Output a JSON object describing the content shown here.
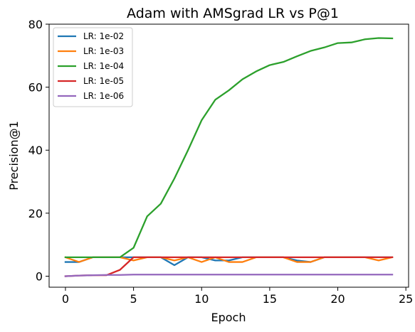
{
  "chart_data": {
    "type": "line",
    "title": "Adam with AMSgrad LR vs P@1",
    "xlabel": "Epoch",
    "ylabel": "Precision@1",
    "xlim": [
      -1.2,
      25.2
    ],
    "ylim": [
      -3.5,
      80
    ],
    "xticks": [
      0,
      5,
      10,
      15,
      20,
      25
    ],
    "yticks": [
      0,
      20,
      40,
      60,
      80
    ],
    "grid": false,
    "legend_position": "top-left",
    "x": [
      0,
      1,
      2,
      3,
      4,
      5,
      6,
      7,
      8,
      9,
      10,
      11,
      12,
      13,
      14,
      15,
      16,
      17,
      18,
      19,
      20,
      21,
      22,
      23,
      24
    ],
    "series": [
      {
        "name": "LR: 1e-02",
        "color": "#1f77b4",
        "values": [
          4.5,
          4.5,
          6,
          6,
          6,
          6,
          6,
          6,
          3.5,
          6,
          6,
          5,
          5,
          6,
          6,
          6,
          6,
          5,
          4.5,
          6,
          6,
          6,
          6,
          6,
          6
        ]
      },
      {
        "name": "LR: 1e-03",
        "color": "#ff7f0e",
        "values": [
          6,
          4.5,
          6,
          6,
          6,
          5,
          6,
          6,
          5,
          6,
          4.5,
          6,
          4.5,
          4.5,
          6,
          6,
          6,
          4.5,
          4.5,
          6,
          6,
          6,
          6,
          5,
          6
        ]
      },
      {
        "name": "LR: 1e-04",
        "color": "#2ca02c",
        "values": [
          6,
          6,
          6,
          6,
          6,
          9,
          19,
          23,
          31,
          40,
          49.5,
          56,
          59,
          62.5,
          65,
          67,
          68,
          69.8,
          71.5,
          72.6,
          74,
          74.2,
          75.2,
          75.6,
          75.5
        ]
      },
      {
        "name": "LR: 1e-05",
        "color": "#d62728",
        "values": [
          0,
          0.2,
          0.3,
          0.3,
          2,
          6,
          6,
          6,
          6,
          6,
          6,
          6,
          6,
          6,
          6,
          6,
          6,
          6,
          6,
          6,
          6,
          6,
          6,
          6,
          6
        ]
      },
      {
        "name": "LR: 1e-06",
        "color": "#9467bd",
        "values": [
          0,
          0.2,
          0.3,
          0.4,
          0.4,
          0.5,
          0.5,
          0.5,
          0.5,
          0.5,
          0.5,
          0.5,
          0.5,
          0.5,
          0.5,
          0.5,
          0.5,
          0.5,
          0.5,
          0.5,
          0.5,
          0.5,
          0.5,
          0.5,
          0.5
        ]
      }
    ]
  }
}
